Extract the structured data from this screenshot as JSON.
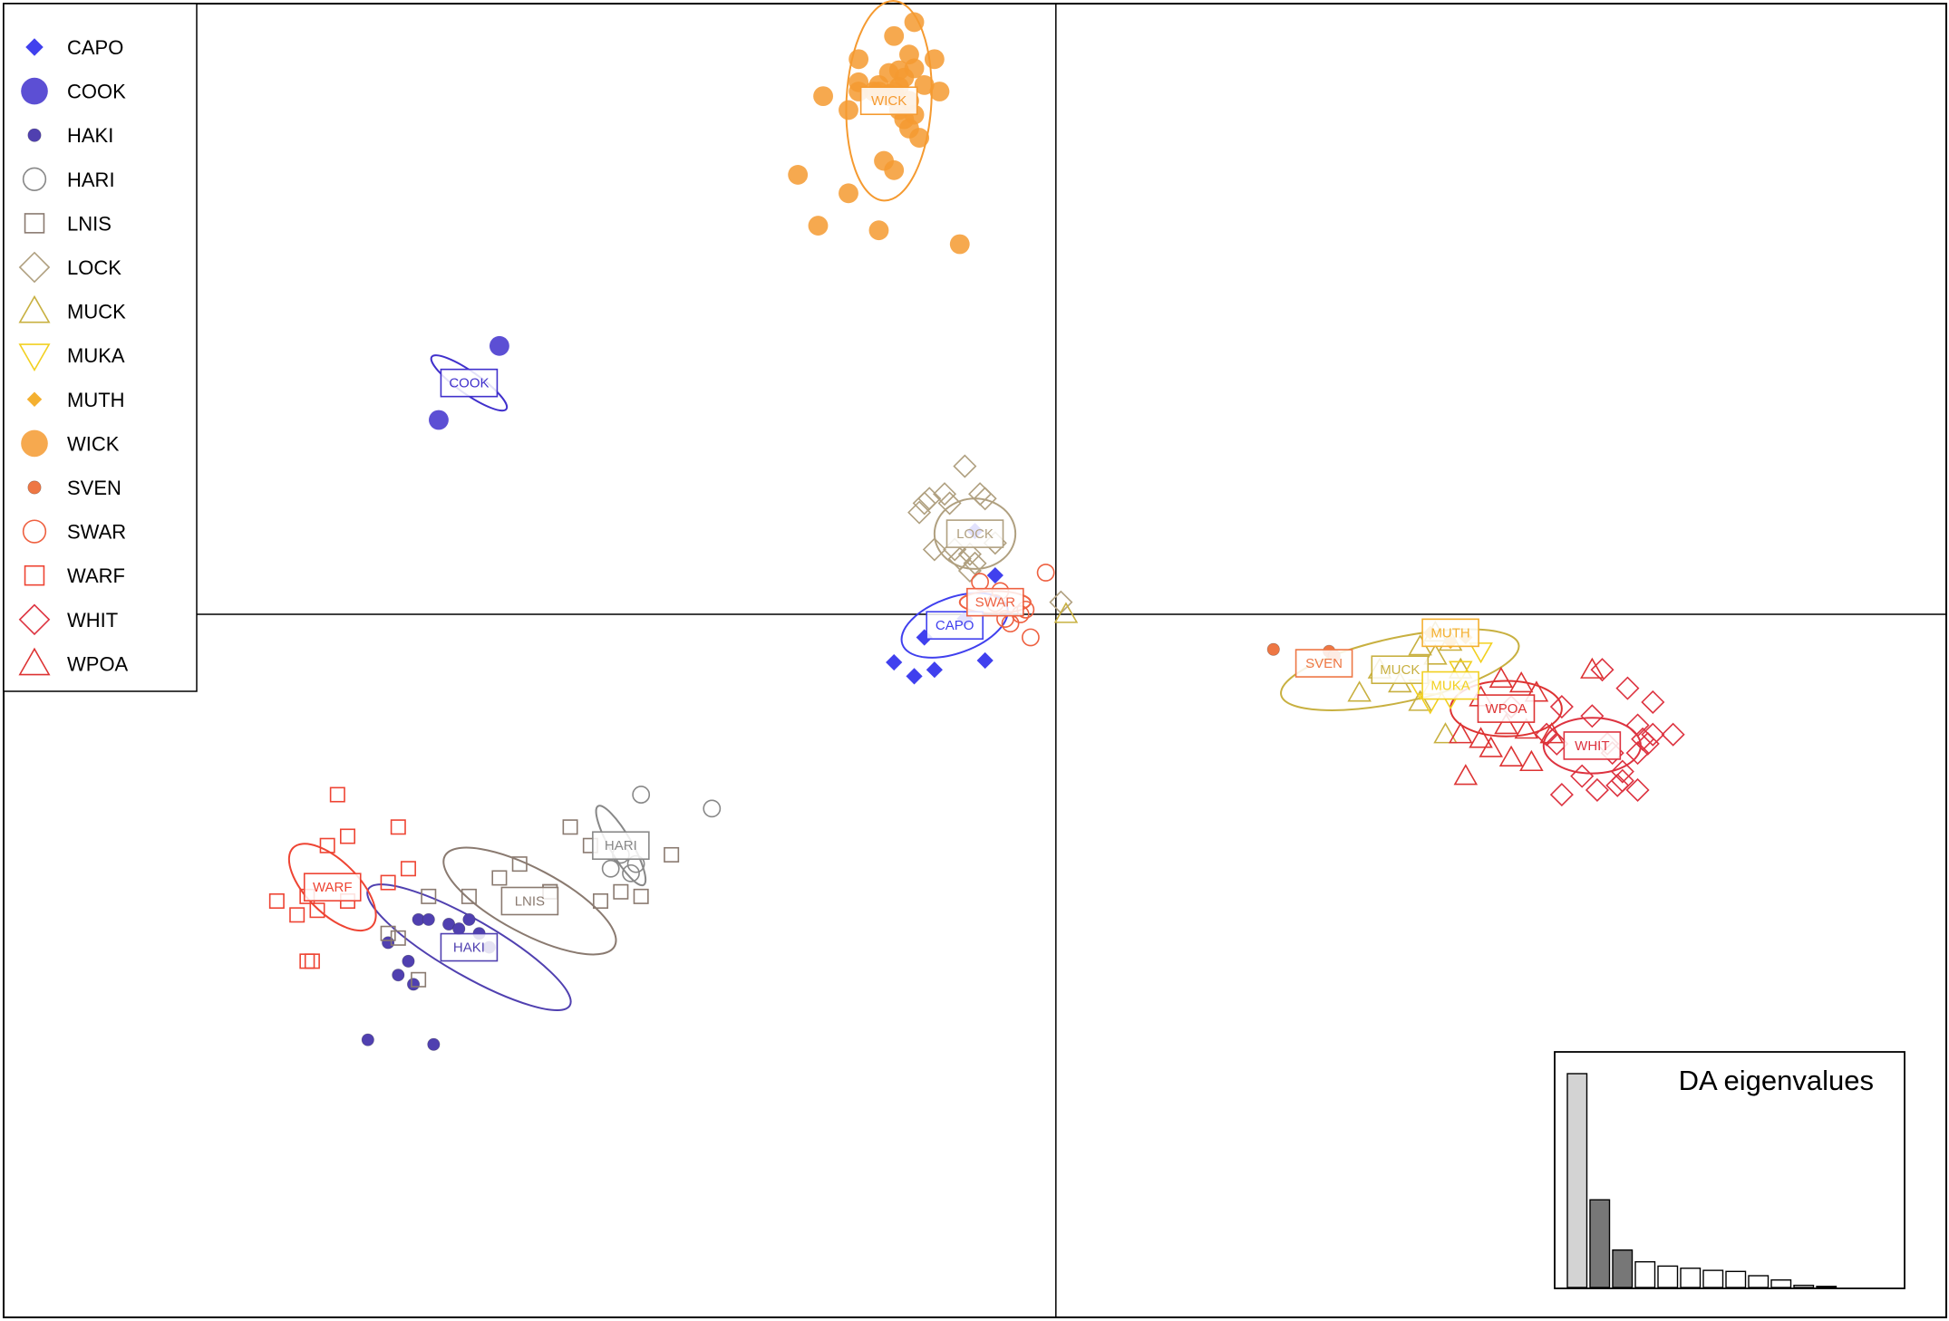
{
  "chart_data": {
    "type": "scatter",
    "title": "",
    "xlabel": "",
    "ylabel": "",
    "xlim": [
      -10.4,
      8.8
    ],
    "ylim": [
      -7.6,
      6.6
    ],
    "axes_cross": [
      0,
      0
    ],
    "legend_position": "top-left",
    "groups": [
      {
        "name": "CAPO",
        "color": "#4040EE",
        "shape": "diamond-filled",
        "center": [
          -1.0,
          -0.12
        ],
        "ellipse": {
          "rx": 0.55,
          "ry": 0.3,
          "angle": 20
        },
        "points": [
          [
            -1.6,
            -0.52
          ],
          [
            -1.4,
            -0.67
          ],
          [
            -1.2,
            -0.6
          ],
          [
            -0.7,
            -0.5
          ],
          [
            -0.6,
            0.42
          ],
          [
            -0.8,
            0.9
          ],
          [
            -1.3,
            -0.25
          ],
          [
            -0.9,
            -0.05
          ]
        ]
      },
      {
        "name": "COOK",
        "color": "#4030CC",
        "shape": "circle-filled",
        "center": [
          -5.8,
          2.5
        ],
        "ellipse": {
          "rx": 0.45,
          "ry": 0.12,
          "angle": -35
        },
        "points": [
          [
            -5.5,
            2.9
          ],
          [
            -6.1,
            2.1
          ]
        ]
      },
      {
        "name": "HAKI",
        "color": "#5040B0",
        "shape": "circle-small-filled",
        "center": [
          -5.8,
          -3.6
        ],
        "ellipse": {
          "rx": 1.15,
          "ry": 0.3,
          "angle": -30
        },
        "points": [
          [
            -6.6,
            -3.55
          ],
          [
            -6.4,
            -3.75
          ],
          [
            -6.3,
            -3.3
          ],
          [
            -6.0,
            -3.35
          ],
          [
            -5.9,
            -3.4
          ],
          [
            -6.35,
            -4.0
          ],
          [
            -5.6,
            -3.6
          ],
          [
            -5.7,
            -3.45
          ],
          [
            -6.5,
            -3.9
          ],
          [
            -6.8,
            -4.6
          ],
          [
            -6.15,
            -4.65
          ],
          [
            -6.2,
            -3.3
          ],
          [
            -5.8,
            -3.3
          ]
        ]
      },
      {
        "name": "HARI",
        "color": "#888888",
        "shape": "circle-open",
        "center": [
          -4.3,
          -2.5
        ],
        "ellipse": {
          "rx": 0.45,
          "ry": 0.12,
          "angle": -60
        },
        "points": [
          [
            -4.1,
            -1.95
          ],
          [
            -4.2,
            -2.8
          ],
          [
            -4.4,
            -2.75
          ],
          [
            -3.4,
            -2.1
          ],
          [
            -4.15,
            -2.7
          ],
          [
            -4.3,
            -2.6
          ]
        ]
      },
      {
        "name": "LNIS",
        "color": "#8A7A70",
        "shape": "square-open",
        "center": [
          -5.2,
          -3.1
        ],
        "ellipse": {
          "rx": 0.95,
          "ry": 0.35,
          "angle": -28
        },
        "points": [
          [
            -5.3,
            -2.7
          ],
          [
            -5.5,
            -2.85
          ],
          [
            -5.8,
            -3.05
          ],
          [
            -6.2,
            -3.05
          ],
          [
            -6.6,
            -3.45
          ],
          [
            -6.5,
            -3.5
          ],
          [
            -6.3,
            -3.95
          ],
          [
            -5.0,
            -3.0
          ],
          [
            -4.6,
            -2.5
          ],
          [
            -4.3,
            -3.0
          ],
          [
            -4.5,
            -3.1
          ],
          [
            -4.1,
            -3.05
          ],
          [
            -3.8,
            -2.6
          ],
          [
            -4.8,
            -2.3
          ],
          [
            -5.0,
            -3.0
          ]
        ]
      },
      {
        "name": "LOCK",
        "color": "#B0A080",
        "shape": "diamond-open",
        "center": [
          -0.8,
          0.87
        ],
        "ellipse": {
          "rx": 0.4,
          "ry": 0.38,
          "angle": 0
        },
        "points": [
          [
            -0.9,
            1.6
          ],
          [
            -0.75,
            1.3
          ],
          [
            -0.7,
            1.25
          ],
          [
            -1.1,
            1.3
          ],
          [
            -1.25,
            1.25
          ],
          [
            -1.35,
            1.1
          ],
          [
            -1.3,
            1.2
          ],
          [
            -0.6,
            0.77
          ],
          [
            -0.85,
            0.65
          ],
          [
            -1.0,
            0.7
          ],
          [
            -0.8,
            0.55
          ],
          [
            -0.85,
            0.47
          ],
          [
            -0.95,
            0.6
          ],
          [
            -1.2,
            0.7
          ],
          [
            0.05,
            0.13
          ],
          [
            -1.05,
            1.2
          ]
        ]
      },
      {
        "name": "MUCK",
        "color": "#C8B040",
        "shape": "triangle-up-open",
        "center": [
          3.4,
          -0.6
        ],
        "ellipse": {
          "rx": 1.2,
          "ry": 0.35,
          "angle": 12
        },
        "points": [
          [
            3.6,
            -0.35
          ],
          [
            3.4,
            -0.75
          ],
          [
            3.75,
            -0.45
          ],
          [
            3.6,
            -0.95
          ],
          [
            3.85,
            -1.3
          ],
          [
            3.0,
            -0.85
          ],
          [
            4.0,
            -0.6
          ],
          [
            3.2,
            -0.6
          ],
          [
            3.9,
            -0.3
          ],
          [
            3.75,
            -0.2
          ],
          [
            0.1,
            0.0
          ]
        ]
      },
      {
        "name": "MUKA",
        "color": "#F2D020",
        "shape": "triangle-down-open",
        "center": [
          3.9,
          -0.77
        ],
        "ellipse": null,
        "points": [
          [
            4.2,
            -0.4
          ],
          [
            4.0,
            -0.6
          ],
          [
            3.6,
            -0.8
          ],
          [
            3.9,
            -0.9
          ],
          [
            3.7,
            -0.95
          ]
        ]
      },
      {
        "name": "MUTH",
        "color": "#F4B030",
        "shape": "diamond-small-filled",
        "center": [
          3.9,
          -0.2
        ],
        "ellipse": null,
        "points": [
          [
            3.7,
            -0.2
          ],
          [
            3.9,
            -0.3
          ],
          [
            4.05,
            -0.25
          ]
        ]
      },
      {
        "name": "WICK",
        "color": "#F59A30",
        "shape": "circle-filled",
        "center": [
          -1.65,
          5.55
        ],
        "ellipse": {
          "rx": 0.42,
          "ry": 1.08,
          "angle": -3
        },
        "points": [
          [
            -1.6,
            6.25
          ],
          [
            -1.4,
            6.4
          ],
          [
            -1.45,
            6.05
          ],
          [
            -1.2,
            6.0
          ],
          [
            -1.5,
            5.8
          ],
          [
            -1.8,
            5.65
          ],
          [
            -1.95,
            5.65
          ],
          [
            -1.75,
            5.65
          ],
          [
            -1.6,
            5.65
          ],
          [
            -1.65,
            5.6
          ],
          [
            -1.55,
            5.7
          ],
          [
            -1.45,
            5.55
          ],
          [
            -1.3,
            5.72
          ],
          [
            -1.15,
            5.65
          ],
          [
            -1.4,
            5.9
          ],
          [
            -1.55,
            5.88
          ],
          [
            -1.75,
            5.72
          ],
          [
            -1.65,
            5.85
          ],
          [
            -1.95,
            5.75
          ],
          [
            -2.3,
            5.6
          ],
          [
            -2.05,
            5.45
          ],
          [
            -1.5,
            5.35
          ],
          [
            -1.45,
            5.25
          ],
          [
            -1.35,
            5.15
          ],
          [
            -1.7,
            4.9
          ],
          [
            -1.6,
            4.8
          ],
          [
            -2.55,
            4.75
          ],
          [
            -2.05,
            4.55
          ],
          [
            -2.35,
            4.2
          ],
          [
            -1.75,
            4.15
          ],
          [
            -0.95,
            4.0
          ],
          [
            -1.4,
            5.4
          ],
          [
            -1.55,
            5.45
          ],
          [
            -1.95,
            6.0
          ],
          [
            -1.65,
            5.62
          ]
        ]
      },
      {
        "name": "SVEN",
        "color": "#EE7744",
        "shape": "circle-small-filled",
        "center": [
          2.65,
          -0.53
        ],
        "ellipse": null,
        "points": [
          [
            2.15,
            -0.38
          ],
          [
            2.7,
            -0.4
          ],
          [
            2.75,
            -0.45
          ]
        ]
      },
      {
        "name": "SWAR",
        "color": "#EE6040",
        "shape": "circle-open",
        "center": [
          -0.6,
          0.13
        ],
        "ellipse": {
          "rx": 0.35,
          "ry": 0.12,
          "angle": 0
        },
        "points": [
          [
            -0.1,
            0.45
          ],
          [
            -0.25,
            -0.25
          ],
          [
            -0.5,
            -0.05
          ],
          [
            -0.35,
            0.0
          ],
          [
            -0.55,
            0.25
          ],
          [
            -0.75,
            0.35
          ],
          [
            -0.6,
            0.12
          ],
          [
            -0.45,
            -0.1
          ],
          [
            -0.3,
            0.05
          ]
        ]
      },
      {
        "name": "WARF",
        "color": "#EE4433",
        "shape": "square-open",
        "center": [
          -7.15,
          -2.95
        ],
        "ellipse": {
          "rx": 0.55,
          "ry": 0.28,
          "angle": -45
        },
        "points": [
          [
            -7.1,
            -1.95
          ],
          [
            -7.2,
            -2.5
          ],
          [
            -7.3,
            -3.2
          ],
          [
            -7.5,
            -3.25
          ],
          [
            -7.4,
            -3.05
          ],
          [
            -7.7,
            -3.1
          ],
          [
            -6.5,
            -2.3
          ],
          [
            -6.6,
            -2.9
          ],
          [
            -6.4,
            -2.75
          ],
          [
            -7.0,
            -2.4
          ],
          [
            -7.4,
            -3.75
          ],
          [
            -7.35,
            -3.75
          ],
          [
            -7.0,
            -3.1
          ]
        ]
      },
      {
        "name": "WHIT",
        "color": "#DD3340",
        "shape": "diamond-open",
        "center": [
          5.3,
          -1.42
        ],
        "ellipse": {
          "rx": 0.48,
          "ry": 0.3,
          "angle": 0
        },
        "points": [
          [
            5.4,
            -0.6
          ],
          [
            5.65,
            -0.8
          ],
          [
            5.9,
            -0.95
          ],
          [
            6.1,
            -1.3
          ],
          [
            5.75,
            -1.2
          ],
          [
            5.3,
            -1.1
          ],
          [
            5.85,
            -1.4
          ],
          [
            5.0,
            -1.0
          ],
          [
            5.45,
            -1.4
          ],
          [
            5.5,
            -1.5
          ],
          [
            5.75,
            -1.5
          ],
          [
            5.6,
            -1.7
          ],
          [
            5.75,
            -1.9
          ],
          [
            5.6,
            -1.8
          ],
          [
            5.2,
            -1.75
          ],
          [
            5.35,
            -1.9
          ],
          [
            5.0,
            -1.95
          ],
          [
            4.5,
            -1.0
          ],
          [
            4.85,
            -1.3
          ],
          [
            4.95,
            -1.4
          ],
          [
            5.8,
            -1.35
          ],
          [
            5.9,
            -1.3
          ],
          [
            5.55,
            -1.85
          ]
        ]
      },
      {
        "name": "WPOA",
        "color": "#DD3333",
        "shape": "triangle-up-open",
        "center": [
          4.45,
          -1.02
        ],
        "ellipse": {
          "rx": 0.55,
          "ry": 0.3,
          "angle": 0
        },
        "points": [
          [
            4.4,
            -0.7
          ],
          [
            4.6,
            -0.75
          ],
          [
            4.45,
            -1.2
          ],
          [
            4.65,
            -1.25
          ],
          [
            4.3,
            -1.45
          ],
          [
            4.2,
            -1.35
          ],
          [
            4.0,
            -1.3
          ],
          [
            4.05,
            -1.75
          ],
          [
            4.5,
            -1.55
          ],
          [
            4.7,
            -1.6
          ],
          [
            4.9,
            -1.3
          ],
          [
            5.3,
            -0.6
          ],
          [
            4.2,
            -0.9
          ],
          [
            4.75,
            -0.85
          ]
        ]
      }
    ],
    "inset": {
      "title": "DA eigenvalues",
      "type": "bar",
      "values": [
        100,
        41,
        17.5,
        12,
        10,
        9,
        8,
        7.5,
        5.5,
        3.5,
        1,
        0.5
      ],
      "retained": 2
    }
  }
}
